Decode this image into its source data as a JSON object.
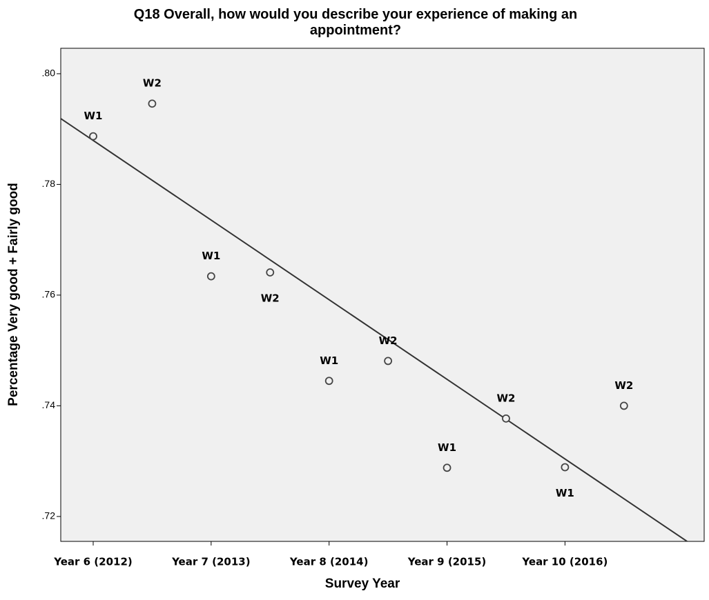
{
  "chart_data": {
    "type": "scatter",
    "title": "Q18 Overall, how would you describe your experience of making an appointment?",
    "x_label": "Survey Year",
    "y_label": "Percentage Very good + Fairly good",
    "series": [
      {
        "x": [
          6,
          6.5,
          7,
          7.5,
          8,
          8.5,
          9,
          9.5,
          10,
          10.5
        ],
        "values": [
          0.7887,
          0.7946,
          0.7634,
          0.7641,
          0.7445,
          0.7481,
          0.7288,
          0.7377,
          0.7289,
          0.74
        ],
        "labels": [
          "W1",
          "W2",
          "W1",
          "W2",
          "W1",
          "W2",
          "W1",
          "W2",
          "W1",
          "W2"
        ],
        "color": "#f0f0f0",
        "edge_color": "#444444"
      }
    ],
    "fit_line": {
      "x": [
        5.725,
        11.035
      ],
      "values": [
        0.7919,
        0.7155
      ],
      "color": "#333333"
    },
    "xlim": [
      5.725,
      11.18
    ],
    "ylim": [
      0.7155,
      0.8046
    ],
    "xticks": [
      {
        "value": 6,
        "label": "Year 6 (2012)"
      },
      {
        "value": 7,
        "label": "Year 7 (2013)"
      },
      {
        "value": 8,
        "label": "Year 8 (2014)"
      },
      {
        "value": 9,
        "label": "Year 9 (2015)"
      },
      {
        "value": 10,
        "label": "Year 10 (2016)"
      }
    ],
    "yticks": [
      {
        "value": 0.72,
        "label": ".72"
      },
      {
        "value": 0.74,
        "label": ".74"
      },
      {
        "value": 0.76,
        "label": ".76"
      },
      {
        "value": 0.78,
        "label": ".78"
      },
      {
        "value": 0.8,
        "label": ".80"
      }
    ],
    "background": "#f0f0f0"
  }
}
